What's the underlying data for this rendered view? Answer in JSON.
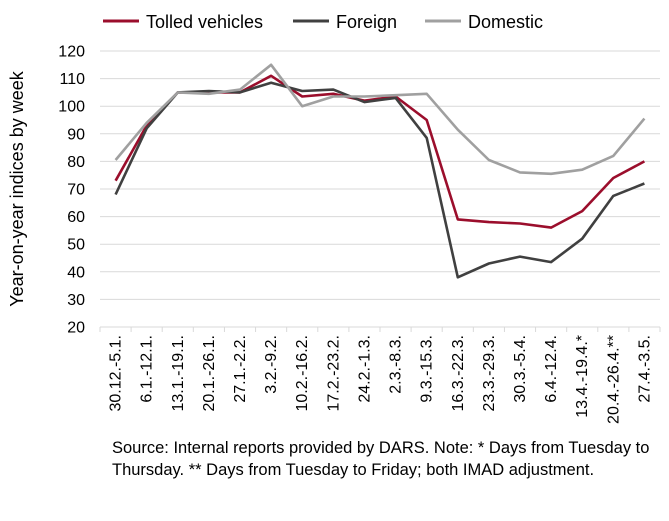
{
  "chart_data": {
    "type": "line",
    "title": "",
    "ylabel": "Year-on-year indices by week",
    "xlabel": "",
    "ylim": [
      20,
      120
    ],
    "yticks": [
      20,
      30,
      40,
      50,
      60,
      70,
      80,
      90,
      100,
      110,
      120
    ],
    "grid": "horizontal",
    "legend_position": "top",
    "categories": [
      "30.12.-5.1.",
      "6.1.-12.1.",
      "13.1.-19.1.",
      "20.1.-26.1.",
      "27.1.-2.2.",
      "3.2.-9.2.",
      "10.2.-16.2.",
      "17.2.-23.2.",
      "24.2.-1.3.",
      "2.3.-8.3.",
      "9.3.-15.3.",
      "16.3.-22.3.",
      "23.3.-29.3.",
      "30.3.-5.4.",
      "6.4.-12.4.",
      "13.4.-19.4.*",
      "20.4.-26.4.**",
      "27.4.-3.5."
    ],
    "series": [
      {
        "name": "Tolled vehicles",
        "color": "#9b0e2c",
        "values": [
          73,
          93,
          105,
          105,
          105,
          111,
          103.5,
          104.5,
          102,
          103.5,
          95,
          59,
          58,
          57.5,
          56,
          62,
          74,
          80
        ]
      },
      {
        "name": "Foreign",
        "color": "#404040",
        "values": [
          68,
          92,
          105,
          105.5,
          105,
          108.5,
          105.5,
          106,
          101.5,
          103,
          88.5,
          38,
          43,
          45.5,
          43.5,
          52,
          67.5,
          72
        ]
      },
      {
        "name": "Domestic",
        "color": "#a0a0a0",
        "values": [
          80.5,
          94,
          105,
          104.5,
          106,
          115,
          100,
          103.5,
          103.5,
          104,
          104.5,
          91.5,
          80.5,
          76,
          75.5,
          77,
          82,
          95.5
        ]
      }
    ]
  },
  "note": {
    "text": "Source: Internal reports provided by DARS. Note: * Days from Tuesday to Thursday. ** Days from Tuesday to Friday; both IMAD adjustment."
  }
}
